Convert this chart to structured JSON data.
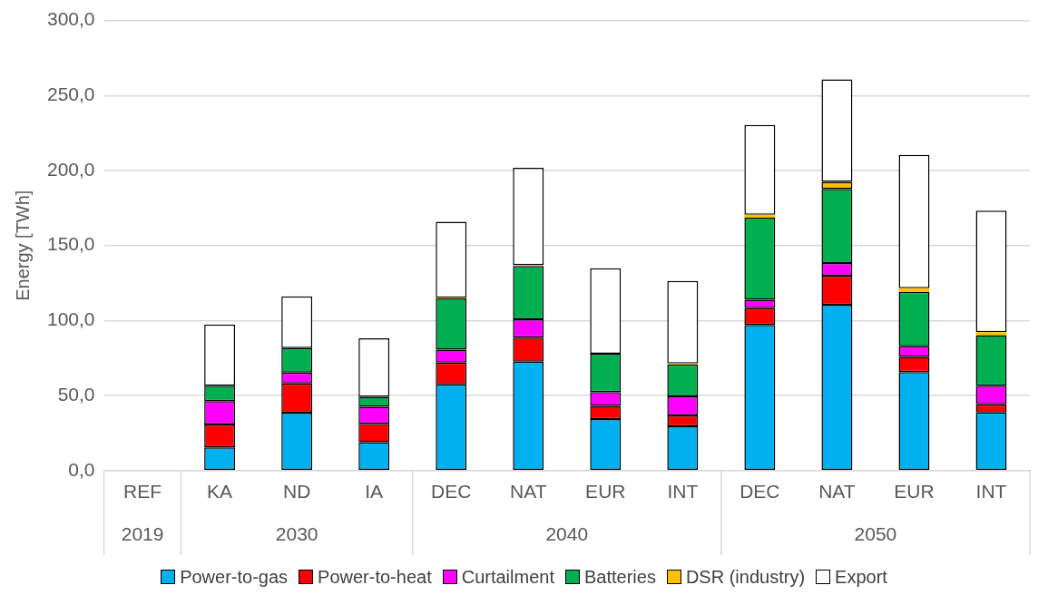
{
  "chart_data": {
    "type": "bar",
    "stacked": true,
    "ylabel": "Energy [TWh]",
    "categories": [
      "REF",
      "KA",
      "ND",
      "IA",
      "DEC",
      "NAT",
      "EUR",
      "INT",
      "DEC",
      "NAT",
      "EUR",
      "INT"
    ],
    "series": [
      {
        "name": "Power-to-gas",
        "color": "#00b0f0",
        "values": [
          null,
          15.4,
          38.5,
          18.9,
          57.4,
          72.6,
          34.3,
          29.5,
          97.1,
          110.5,
          65.6,
          38.7
        ]
      },
      {
        "name": "Power-to-heat",
        "color": "#ff0000",
        "values": [
          null,
          15.3,
          19.5,
          12.2,
          14.6,
          16.0,
          8.8,
          7.2,
          11.2,
          19.3,
          10.2,
          5.4
        ]
      },
      {
        "name": "Curtailment",
        "color": "#ff00ff",
        "values": [
          null,
          15.6,
          7.4,
          11.4,
          8.6,
          12.3,
          9.2,
          12.8,
          5.6,
          8.6,
          7.0,
          12.5
        ]
      },
      {
        "name": "Batteries",
        "color": "#00b050",
        "values": [
          null,
          10.3,
          16.2,
          6.6,
          34.1,
          35.5,
          25.5,
          21.3,
          54.6,
          49.3,
          36.3,
          33.7
        ]
      },
      {
        "name": "DSR (industry)",
        "color": "#ffc000",
        "values": [
          null,
          null,
          null,
          null,
          0.5,
          0.5,
          null,
          0.5,
          2.0,
          4.8,
          2.4,
          2.0
        ]
      },
      {
        "name": "Export",
        "color": "#ffffff",
        "values": [
          null,
          40.7,
          34.5,
          39.1,
          50.7,
          64.9,
          57.0,
          55.1,
          59.9,
          68.2,
          88.9,
          81.0
        ]
      }
    ],
    "ylim": [
      0,
      300
    ],
    "yticks": [
      {
        "value": 0,
        "label": "0,0"
      },
      {
        "value": 50,
        "label": "50,0"
      },
      {
        "value": 100,
        "label": "100,0"
      },
      {
        "value": 150,
        "label": "150,0"
      },
      {
        "value": 200,
        "label": "200,0"
      },
      {
        "value": 250,
        "label": "250,0"
      },
      {
        "value": 300,
        "label": "300,0"
      }
    ],
    "grid": "y",
    "legend": "bottom",
    "annotations": [
      "2019",
      "2030",
      "2040",
      "2050"
    ]
  }
}
